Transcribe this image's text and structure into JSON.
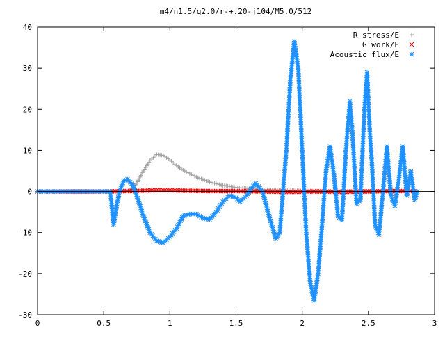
{
  "chart_data": {
    "type": "scatter",
    "title": "m4/n1.5/q2.0/r-+.20-j104/M5.0/512",
    "xlabel": "",
    "ylabel": "",
    "xlim": [
      0,
      3
    ],
    "ylim": [
      -30,
      40
    ],
    "xticks": [
      0,
      0.5,
      1,
      1.5,
      2,
      2.5,
      3
    ],
    "xtick_labels": [
      "0",
      "0.5",
      "1",
      "1.5",
      "2",
      "2.5",
      "3"
    ],
    "yticks": [
      -30,
      -20,
      -10,
      0,
      10,
      20,
      30,
      40
    ],
    "ytick_labels": [
      "-30",
      "-20",
      "-10",
      "0",
      "10",
      "20",
      "30",
      "40"
    ],
    "grid": false,
    "legend_position": "top-right",
    "series": [
      {
        "name": "R stress/E",
        "marker": "+",
        "color": "#a0a0a0",
        "points": [
          [
            0.0,
            0
          ],
          [
            0.5,
            0
          ],
          [
            0.6,
            0
          ],
          [
            0.7,
            0.3
          ],
          [
            0.75,
            2.0
          ],
          [
            0.8,
            5.0
          ],
          [
            0.85,
            7.5
          ],
          [
            0.9,
            9.0
          ],
          [
            0.95,
            8.8
          ],
          [
            1.0,
            7.7
          ],
          [
            1.05,
            6.3
          ],
          [
            1.1,
            5.2
          ],
          [
            1.2,
            3.5
          ],
          [
            1.3,
            2.3
          ],
          [
            1.4,
            1.5
          ],
          [
            1.5,
            1.0
          ],
          [
            1.6,
            0.7
          ],
          [
            1.7,
            0.5
          ],
          [
            1.8,
            0.4
          ],
          [
            1.9,
            0.3
          ],
          [
            2.0,
            0.2
          ],
          [
            2.2,
            0.1
          ],
          [
            2.5,
            0.1
          ],
          [
            2.85,
            0.1
          ]
        ]
      },
      {
        "name": "G work/E",
        "marker": "x",
        "color": "#ff0000",
        "points": [
          [
            0.0,
            0
          ],
          [
            0.5,
            0
          ],
          [
            0.7,
            0.1
          ],
          [
            0.9,
            0.3
          ],
          [
            1.0,
            0.3
          ],
          [
            1.1,
            0.2
          ],
          [
            1.3,
            0.1
          ],
          [
            1.5,
            0.1
          ],
          [
            1.7,
            0.0
          ],
          [
            1.9,
            -0.1
          ],
          [
            2.1,
            0.0
          ],
          [
            2.3,
            -0.1
          ],
          [
            2.5,
            0.0
          ],
          [
            2.7,
            0.1
          ],
          [
            2.85,
            0.1
          ]
        ]
      },
      {
        "name": "Acoustic flux/E",
        "marker": "*",
        "color": "#1e90ff",
        "points": [
          [
            0.0,
            0
          ],
          [
            0.55,
            0
          ],
          [
            0.575,
            -8
          ],
          [
            0.6,
            -3
          ],
          [
            0.62,
            0
          ],
          [
            0.65,
            2.5
          ],
          [
            0.68,
            3.0
          ],
          [
            0.72,
            1.5
          ],
          [
            0.76,
            -2
          ],
          [
            0.8,
            -6
          ],
          [
            0.85,
            -10
          ],
          [
            0.9,
            -12
          ],
          [
            0.95,
            -12.5
          ],
          [
            1.0,
            -11
          ],
          [
            1.05,
            -9
          ],
          [
            1.1,
            -6
          ],
          [
            1.15,
            -5.5
          ],
          [
            1.2,
            -5.5
          ],
          [
            1.25,
            -6.5
          ],
          [
            1.3,
            -6.8
          ],
          [
            1.35,
            -5
          ],
          [
            1.4,
            -2.5
          ],
          [
            1.45,
            -1
          ],
          [
            1.5,
            -1.5
          ],
          [
            1.53,
            -2.5
          ],
          [
            1.58,
            -1
          ],
          [
            1.62,
            1
          ],
          [
            1.65,
            2.0
          ],
          [
            1.7,
            0
          ],
          [
            1.75,
            -6
          ],
          [
            1.8,
            -11.5
          ],
          [
            1.83,
            -10
          ],
          [
            1.85,
            -2
          ],
          [
            1.88,
            10
          ],
          [
            1.91,
            27
          ],
          [
            1.94,
            36.5
          ],
          [
            1.97,
            30
          ],
          [
            2.0,
            10
          ],
          [
            2.03,
            -10
          ],
          [
            2.06,
            -22
          ],
          [
            2.09,
            -26.5
          ],
          [
            2.12,
            -20
          ],
          [
            2.15,
            -8
          ],
          [
            2.18,
            5
          ],
          [
            2.21,
            11
          ],
          [
            2.24,
            4
          ],
          [
            2.27,
            -6
          ],
          [
            2.3,
            -7
          ],
          [
            2.33,
            10
          ],
          [
            2.36,
            22
          ],
          [
            2.38,
            14
          ],
          [
            2.41,
            -3
          ],
          [
            2.44,
            -2
          ],
          [
            2.47,
            20
          ],
          [
            2.49,
            29
          ],
          [
            2.51,
            15
          ],
          [
            2.53,
            5
          ],
          [
            2.55,
            -8
          ],
          [
            2.58,
            -10.5
          ],
          [
            2.61,
            0
          ],
          [
            2.64,
            11
          ],
          [
            2.67,
            -1
          ],
          [
            2.7,
            -3.5
          ],
          [
            2.73,
            3
          ],
          [
            2.76,
            11
          ],
          [
            2.79,
            -1
          ],
          [
            2.82,
            5
          ],
          [
            2.85,
            -2
          ],
          [
            2.87,
            0
          ]
        ]
      }
    ]
  }
}
